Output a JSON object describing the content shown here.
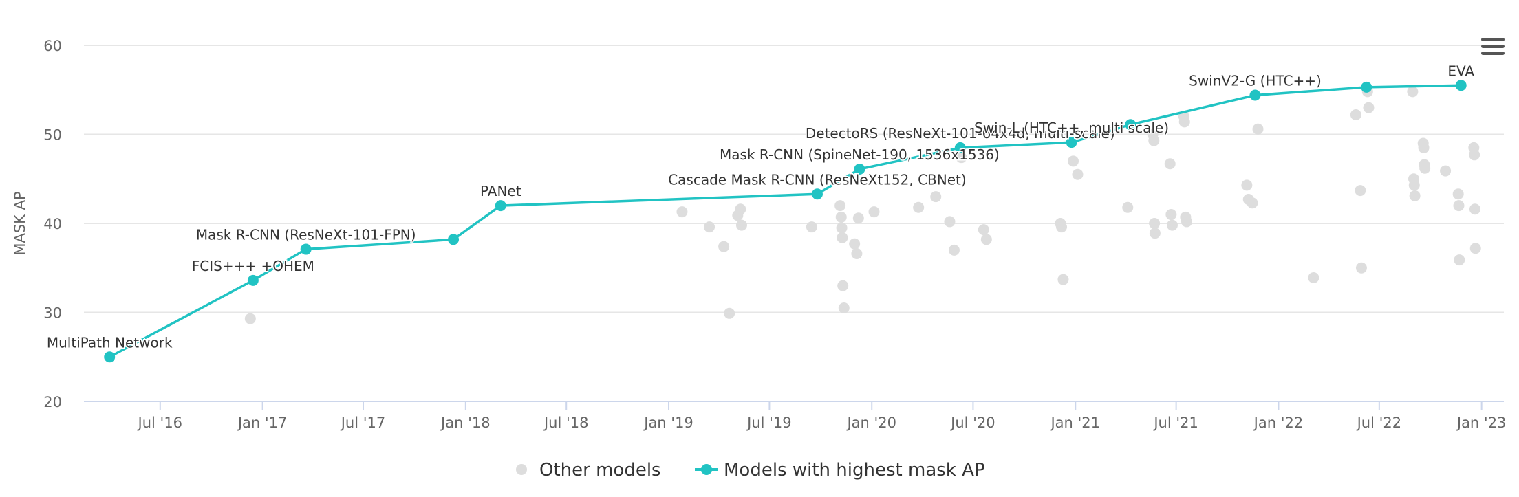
{
  "chart_data": {
    "type": "scatter",
    "xlabel": "",
    "ylabel": "MASK AP",
    "ylim": [
      20,
      60
    ],
    "xlim": [
      "2016-02-15",
      "2023-02-10"
    ],
    "y_ticks": [
      20,
      30,
      40,
      50,
      60
    ],
    "x_ticks": [
      {
        "date": "2016-07-01",
        "label": "Jul '16"
      },
      {
        "date": "2017-01-01",
        "label": "Jan '17"
      },
      {
        "date": "2017-07-01",
        "label": "Jul '17"
      },
      {
        "date": "2018-01-01",
        "label": "Jan '18"
      },
      {
        "date": "2018-07-01",
        "label": "Jul '18"
      },
      {
        "date": "2019-01-01",
        "label": "Jan '19"
      },
      {
        "date": "2019-07-01",
        "label": "Jul '19"
      },
      {
        "date": "2020-01-01",
        "label": "Jan '20"
      },
      {
        "date": "2020-07-01",
        "label": "Jul '20"
      },
      {
        "date": "2021-01-01",
        "label": "Jan '21"
      },
      {
        "date": "2021-07-01",
        "label": "Jul '21"
      },
      {
        "date": "2022-01-01",
        "label": "Jan '22"
      },
      {
        "date": "2022-07-01",
        "label": "Jul '22"
      },
      {
        "date": "2023-01-01",
        "label": "Jan '23"
      }
    ],
    "grid": true,
    "legend_position": "bottom-center",
    "series": [
      {
        "name": "Other models",
        "color": "#dddddd",
        "points": [
          {
            "x": "2016-12-10",
            "y": 29.3
          },
          {
            "x": "2019-01-25",
            "y": 41.3
          },
          {
            "x": "2019-03-15",
            "y": 39.6
          },
          {
            "x": "2019-04-10",
            "y": 37.4
          },
          {
            "x": "2019-04-20",
            "y": 29.9
          },
          {
            "x": "2019-05-05",
            "y": 40.9
          },
          {
            "x": "2019-05-10",
            "y": 41.6
          },
          {
            "x": "2019-05-12",
            "y": 39.8
          },
          {
            "x": "2019-09-15",
            "y": 39.6
          },
          {
            "x": "2019-11-05",
            "y": 42.0
          },
          {
            "x": "2019-11-07",
            "y": 40.7
          },
          {
            "x": "2019-11-08",
            "y": 39.5
          },
          {
            "x": "2019-11-09",
            "y": 38.4
          },
          {
            "x": "2019-11-10",
            "y": 33.0
          },
          {
            "x": "2019-11-12",
            "y": 30.5
          },
          {
            "x": "2019-12-01",
            "y": 37.7
          },
          {
            "x": "2019-12-05",
            "y": 36.6
          },
          {
            "x": "2019-12-08",
            "y": 40.6
          },
          {
            "x": "2020-01-05",
            "y": 41.3
          },
          {
            "x": "2020-03-25",
            "y": 41.8
          },
          {
            "x": "2020-04-25",
            "y": 43.0
          },
          {
            "x": "2020-05-20",
            "y": 40.2
          },
          {
            "x": "2020-05-28",
            "y": 37.0
          },
          {
            "x": "2020-06-10",
            "y": 47.4
          },
          {
            "x": "2020-07-20",
            "y": 39.3
          },
          {
            "x": "2020-07-25",
            "y": 38.2
          },
          {
            "x": "2020-12-05",
            "y": 40.0
          },
          {
            "x": "2020-12-07",
            "y": 39.6
          },
          {
            "x": "2020-12-10",
            "y": 33.7
          },
          {
            "x": "2020-12-28",
            "y": 47.0
          },
          {
            "x": "2021-01-05",
            "y": 45.5
          },
          {
            "x": "2021-04-05",
            "y": 41.8
          },
          {
            "x": "2021-05-20",
            "y": 50.0
          },
          {
            "x": "2021-05-22",
            "y": 49.3
          },
          {
            "x": "2021-05-23",
            "y": 40.0
          },
          {
            "x": "2021-05-24",
            "y": 38.9
          },
          {
            "x": "2021-06-20",
            "y": 46.7
          },
          {
            "x": "2021-06-22",
            "y": 41.0
          },
          {
            "x": "2021-06-24",
            "y": 39.8
          },
          {
            "x": "2021-07-15",
            "y": 52.0
          },
          {
            "x": "2021-07-16",
            "y": 51.4
          },
          {
            "x": "2021-07-18",
            "y": 40.7
          },
          {
            "x": "2021-07-20",
            "y": 40.2
          },
          {
            "x": "2021-11-05",
            "y": 44.3
          },
          {
            "x": "2021-11-08",
            "y": 42.7
          },
          {
            "x": "2021-11-15",
            "y": 42.3
          },
          {
            "x": "2021-11-25",
            "y": 50.6
          },
          {
            "x": "2022-03-05",
            "y": 33.9
          },
          {
            "x": "2022-05-20",
            "y": 52.2
          },
          {
            "x": "2022-05-28",
            "y": 43.7
          },
          {
            "x": "2022-05-30",
            "y": 35.0
          },
          {
            "x": "2022-06-10",
            "y": 54.8
          },
          {
            "x": "2022-06-12",
            "y": 53.0
          },
          {
            "x": "2022-08-30",
            "y": 54.8
          },
          {
            "x": "2022-09-01",
            "y": 45.0
          },
          {
            "x": "2022-09-02",
            "y": 44.3
          },
          {
            "x": "2022-09-03",
            "y": 43.1
          },
          {
            "x": "2022-09-18",
            "y": 49.0
          },
          {
            "x": "2022-09-19",
            "y": 48.5
          },
          {
            "x": "2022-09-20",
            "y": 46.6
          },
          {
            "x": "2022-09-21",
            "y": 46.2
          },
          {
            "x": "2022-10-28",
            "y": 45.9
          },
          {
            "x": "2022-11-20",
            "y": 43.3
          },
          {
            "x": "2022-11-21",
            "y": 42.0
          },
          {
            "x": "2022-11-22",
            "y": 35.9
          },
          {
            "x": "2022-12-18",
            "y": 48.5
          },
          {
            "x": "2022-12-19",
            "y": 47.7
          },
          {
            "x": "2022-12-20",
            "y": 41.6
          },
          {
            "x": "2022-12-21",
            "y": 37.2
          }
        ]
      },
      {
        "name": "Models with highest mask AP",
        "color": "#21c3c3",
        "points": [
          {
            "x": "2016-04-01",
            "y": 25.0,
            "label": "MultiPath Network"
          },
          {
            "x": "2016-12-15",
            "y": 33.6,
            "label": "FCIS+++ +OHEM"
          },
          {
            "x": "2017-03-20",
            "y": 37.1,
            "label": "Mask R-CNN (ResNeXt-101-FPN)"
          },
          {
            "x": "2017-12-10",
            "y": 38.2,
            "label": ""
          },
          {
            "x": "2018-03-05",
            "y": 42.0,
            "label": "PANet"
          },
          {
            "x": "2019-09-25",
            "y": 43.3,
            "label": "Cascade Mask R-CNN (ResNeXt152, CBNet)"
          },
          {
            "x": "2019-12-10",
            "y": 46.1,
            "label": "Mask R-CNN (SpineNet-190, 1536x1536)"
          },
          {
            "x": "2020-06-08",
            "y": 48.5,
            "label": "DetectoRS (ResNeXt-101-64x4d, multi-scale)"
          },
          {
            "x": "2020-12-25",
            "y": 49.1,
            "label": "Swin-L (HTC++, multi scale)"
          },
          {
            "x": "2021-04-10",
            "y": 51.1,
            "label": ""
          },
          {
            "x": "2021-11-20",
            "y": 54.4,
            "label": "SwinV2-G (HTC++)"
          },
          {
            "x": "2022-06-08",
            "y": 55.3,
            "label": ""
          },
          {
            "x": "2022-11-25",
            "y": 55.5,
            "label": "EVA"
          }
        ]
      }
    ]
  }
}
